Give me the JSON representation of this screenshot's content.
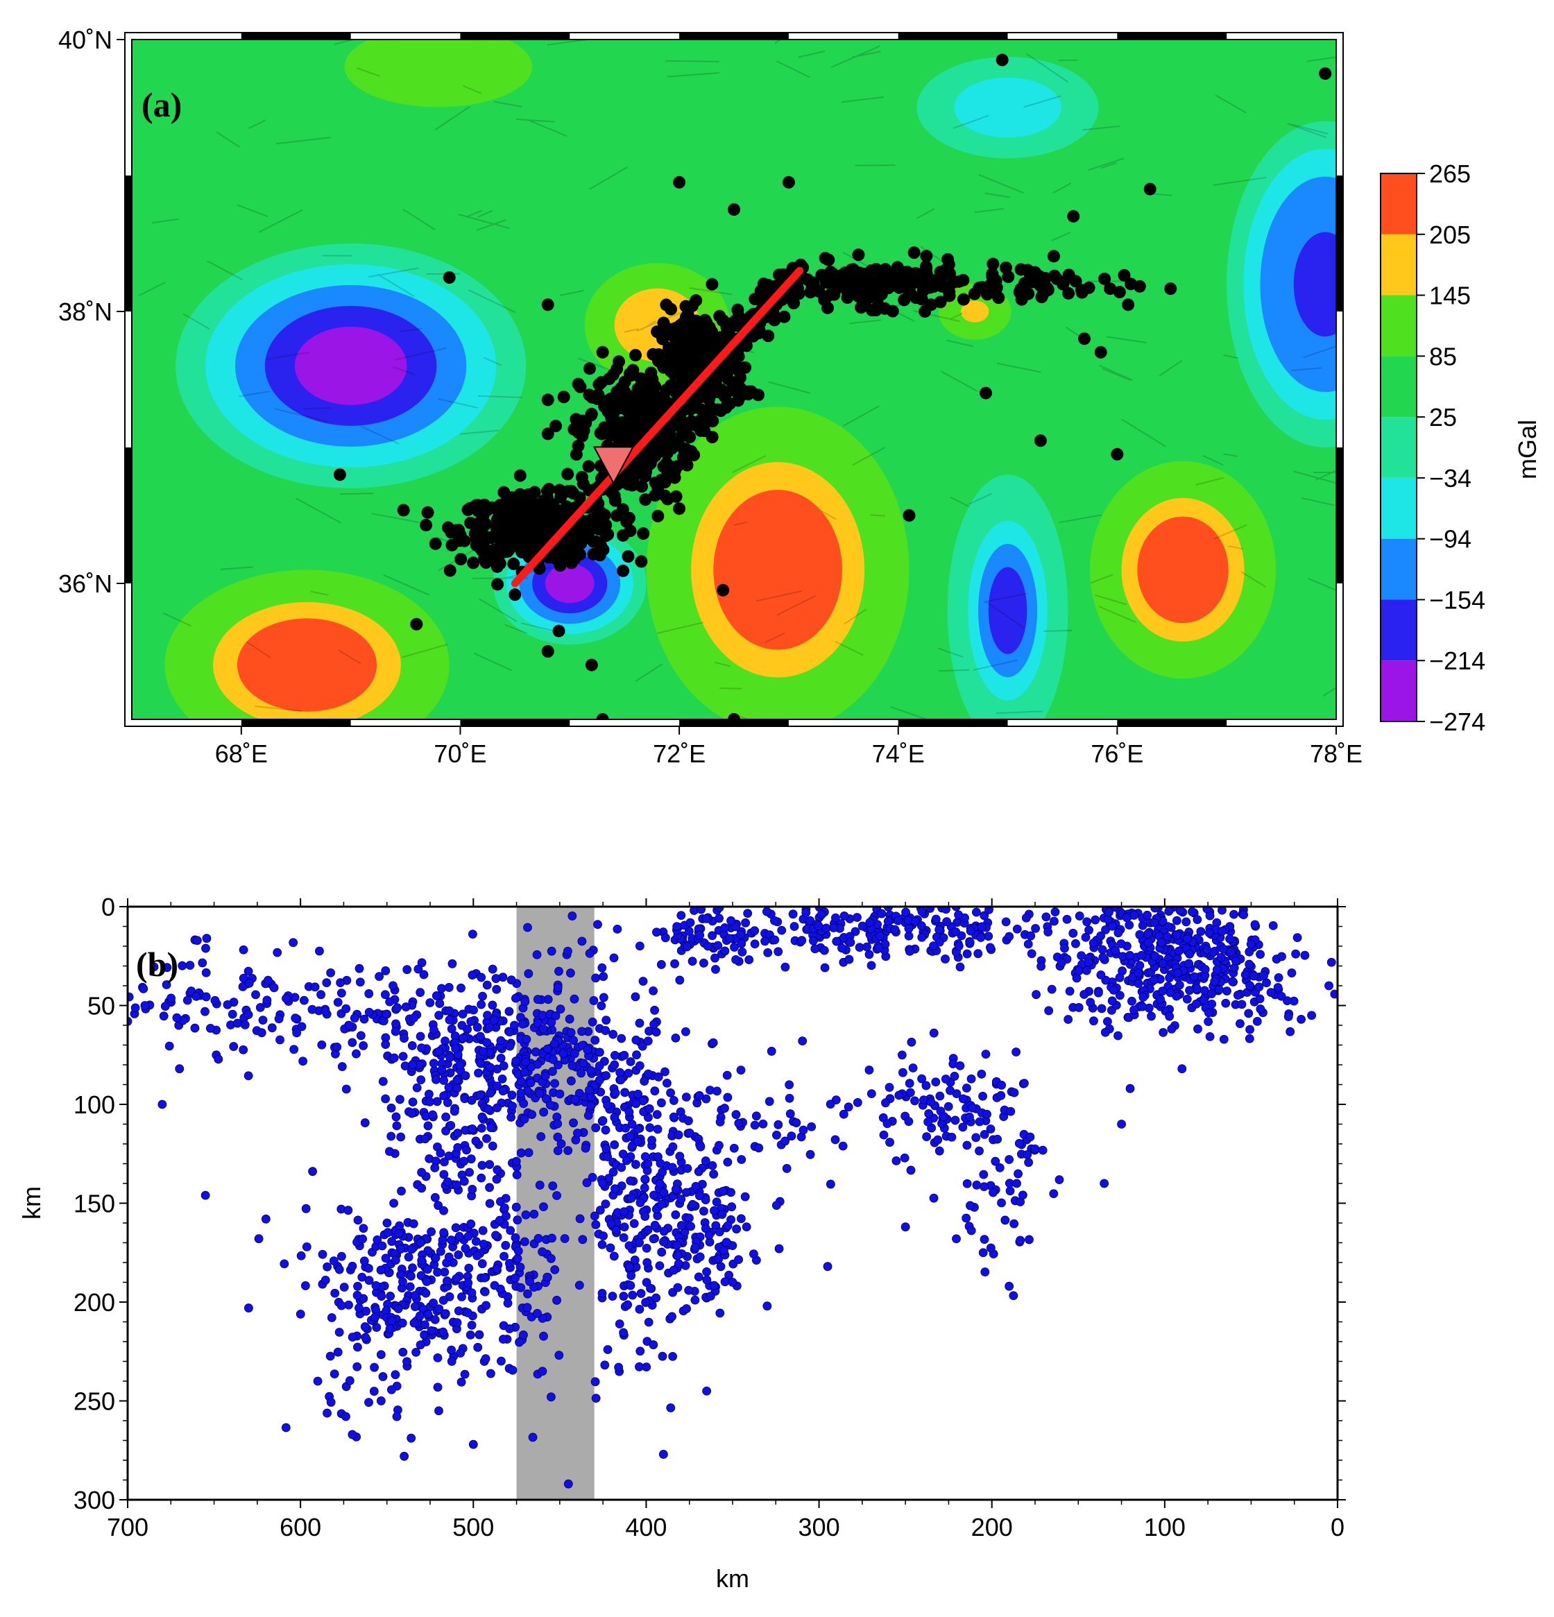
{
  "chart_data": [
    {
      "type": "map-contour",
      "panel_label": "(a)",
      "xlim": [
        67,
        78
      ],
      "ylim": [
        35,
        40
      ],
      "x_ticks": [
        {
          "value": 68,
          "label": "68˚E"
        },
        {
          "value": 70,
          "label": "70˚E"
        },
        {
          "value": 72,
          "label": "72˚E"
        },
        {
          "value": 74,
          "label": "74˚E"
        },
        {
          "value": 76,
          "label": "76˚E"
        },
        {
          "value": 78,
          "label": "78˚E"
        }
      ],
      "y_ticks": [
        {
          "value": 40,
          "label": "40˚N"
        },
        {
          "value": 38,
          "label": "38˚N"
        },
        {
          "value": 36,
          "label": "36˚N"
        }
      ],
      "colorbar": {
        "label": "mGal",
        "levels": [
          "265",
          "205",
          "145",
          "85",
          "25",
          "−34",
          "−94",
          "−154",
          "−214",
          "−274"
        ],
        "colors": [
          "#ff4f1f",
          "#ffc81a",
          "#4fe01f",
          "#22d650",
          "#22e29a",
          "#1ee6e6",
          "#1a88ff",
          "#2a22ee",
          "#9b16e6",
          "#dd22ee"
        ]
      },
      "anomalies": [
        {
          "lon": 69.0,
          "lat": 37.6,
          "value": -274,
          "rx": 1.6,
          "ry": 0.9
        },
        {
          "lon": 71.0,
          "lat": 36.0,
          "value": -240,
          "rx": 0.7,
          "ry": 0.45
        },
        {
          "lon": 77.9,
          "lat": 38.2,
          "value": -200,
          "rx": 0.9,
          "ry": 1.2
        },
        {
          "lon": 75.0,
          "lat": 35.8,
          "value": -160,
          "rx": 0.55,
          "ry": 1.0
        },
        {
          "lon": 75.0,
          "lat": 39.5,
          "value": -80,
          "rx": 1.0,
          "ry": 0.45
        },
        {
          "lon": 68.6,
          "lat": 35.4,
          "value": 265,
          "rx": 1.3,
          "ry": 0.7
        },
        {
          "lon": 72.9,
          "lat": 36.1,
          "value": 265,
          "rx": 1.2,
          "ry": 1.2
        },
        {
          "lon": 76.6,
          "lat": 36.1,
          "value": 265,
          "rx": 0.85,
          "ry": 0.8
        },
        {
          "lon": 71.8,
          "lat": 37.9,
          "value": 180,
          "rx": 0.8,
          "ry": 0.55
        },
        {
          "lon": 69.8,
          "lat": 39.8,
          "value": 110,
          "rx": 1.3,
          "ry": 0.45
        },
        {
          "lon": 74.7,
          "lat": 38.0,
          "value": 160,
          "rx": 0.4,
          "ry": 0.25
        }
      ],
      "profile_line": {
        "start": [
          70.5,
          36.0
        ],
        "end": [
          73.1,
          38.3
        ],
        "color": "#ff1a1a"
      },
      "station": {
        "lon": 71.4,
        "lat": 36.85,
        "color": "#f07070"
      },
      "epicenter_color": "#000000",
      "epicenter_clusters": [
        {
          "lon": 70.7,
          "lat": 36.4,
          "slon": 0.35,
          "slat": 0.12,
          "n": 420
        },
        {
          "lon": 71.6,
          "lat": 37.1,
          "slon": 0.25,
          "slat": 0.25,
          "n": 300
        },
        {
          "lon": 72.2,
          "lat": 37.6,
          "slon": 0.2,
          "slat": 0.2,
          "n": 260
        },
        {
          "lon": 73.8,
          "lat": 38.2,
          "slon": 0.4,
          "slat": 0.08,
          "n": 180
        },
        {
          "lon": 75.3,
          "lat": 38.2,
          "slon": 0.4,
          "slat": 0.08,
          "n": 50
        }
      ],
      "epicenters_scattered": [
        [
          74.95,
          39.85
        ],
        [
          77.9,
          39.75
        ],
        [
          76.3,
          38.9
        ],
        [
          73.0,
          38.95
        ],
        [
          72.0,
          38.95
        ],
        [
          72.5,
          38.75
        ],
        [
          75.6,
          38.7
        ],
        [
          69.9,
          38.25
        ],
        [
          70.8,
          38.05
        ],
        [
          76.1,
          38.05
        ],
        [
          72.3,
          38.2
        ],
        [
          74.8,
          37.4
        ],
        [
          75.3,
          37.05
        ],
        [
          76.0,
          36.95
        ],
        [
          74.1,
          36.5
        ],
        [
          72.4,
          35.95
        ],
        [
          68.9,
          36.8
        ],
        [
          69.6,
          35.7
        ],
        [
          72.5,
          35.0
        ],
        [
          71.3,
          35.0
        ],
        [
          70.8,
          35.5
        ],
        [
          71.2,
          35.4
        ],
        [
          70.9,
          35.65
        ],
        [
          72.0,
          36.55
        ],
        [
          70.8,
          37.35
        ],
        [
          70.8,
          37.1
        ],
        [
          71.3,
          37.7
        ],
        [
          75.7,
          37.8
        ],
        [
          75.85,
          37.7
        ],
        [
          74.3,
          38.05
        ]
      ]
    },
    {
      "type": "scatter",
      "panel_label": "(b)",
      "xlabel": "km",
      "ylabel": "km",
      "xlim": [
        700,
        0
      ],
      "ylim": [
        300,
        0
      ],
      "x_ticks": [
        700,
        600,
        500,
        400,
        300,
        200,
        100,
        0
      ],
      "y_ticks": [
        0,
        50,
        100,
        150,
        200,
        250,
        300
      ],
      "highlight_band": {
        "x_from": 475,
        "x_to": 430,
        "color": "#ababab"
      },
      "point_color": "#1010e6",
      "clusters": [
        {
          "x": 490,
          "y": 70,
          "sx": 35,
          "sy": 22,
          "n": 260
        },
        {
          "x": 510,
          "y": 110,
          "sx": 20,
          "sy": 20,
          "n": 120
        },
        {
          "x": 525,
          "y": 190,
          "sx": 30,
          "sy": 22,
          "n": 280
        },
        {
          "x": 480,
          "y": 180,
          "sx": 15,
          "sy": 25,
          "n": 80
        },
        {
          "x": 600,
          "y": 55,
          "sx": 45,
          "sy": 12,
          "n": 110
        },
        {
          "x": 430,
          "y": 85,
          "sx": 25,
          "sy": 20,
          "n": 180
        },
        {
          "x": 395,
          "y": 135,
          "sx": 25,
          "sy": 28,
          "n": 230
        },
        {
          "x": 405,
          "y": 200,
          "sx": 18,
          "sy": 25,
          "n": 60
        },
        {
          "x": 365,
          "y": 175,
          "sx": 15,
          "sy": 12,
          "n": 70
        },
        {
          "x": 360,
          "y": 15,
          "sx": 25,
          "sy": 8,
          "n": 90
        },
        {
          "x": 250,
          "y": 12,
          "sx": 45,
          "sy": 8,
          "n": 200
        },
        {
          "x": 320,
          "y": 110,
          "sx": 25,
          "sy": 15,
          "n": 40
        },
        {
          "x": 225,
          "y": 100,
          "sx": 20,
          "sy": 15,
          "n": 90
        },
        {
          "x": 195,
          "y": 135,
          "sx": 15,
          "sy": 25,
          "n": 60
        },
        {
          "x": 100,
          "y": 25,
          "sx": 30,
          "sy": 14,
          "n": 330
        },
        {
          "x": 50,
          "y": 40,
          "sx": 20,
          "sy": 14,
          "n": 60
        },
        {
          "x": 120,
          "y": 50,
          "sx": 25,
          "sy": 10,
          "n": 40
        },
        {
          "x": 655,
          "y": 40,
          "sx": 20,
          "sy": 15,
          "n": 40
        },
        {
          "x": 560,
          "y": 230,
          "sx": 20,
          "sy": 25,
          "n": 40
        }
      ],
      "points_scattered": [
        [
          445,
          292
        ],
        [
          390,
          277
        ],
        [
          540,
          278
        ],
        [
          570,
          267
        ],
        [
          630,
          203
        ],
        [
          655,
          146
        ],
        [
          365,
          245
        ],
        [
          190,
          192
        ],
        [
          135,
          140
        ],
        [
          90,
          82
        ],
        [
          295,
          182
        ],
        [
          455,
          248
        ],
        [
          500,
          272
        ],
        [
          620,
          158
        ],
        [
          680,
          100
        ],
        [
          670,
          82
        ],
        [
          590,
          240
        ],
        [
          520,
          255
        ],
        [
          460,
          235
        ],
        [
          690,
          50
        ],
        [
          700,
          58
        ],
        [
          15,
          55
        ],
        [
          5,
          40
        ],
        [
          250,
          162
        ],
        [
          205,
          175
        ],
        [
          125,
          110
        ],
        [
          120,
          92
        ],
        [
          455,
          178
        ],
        [
          350,
          190
        ],
        [
          330,
          202
        ]
      ]
    }
  ]
}
